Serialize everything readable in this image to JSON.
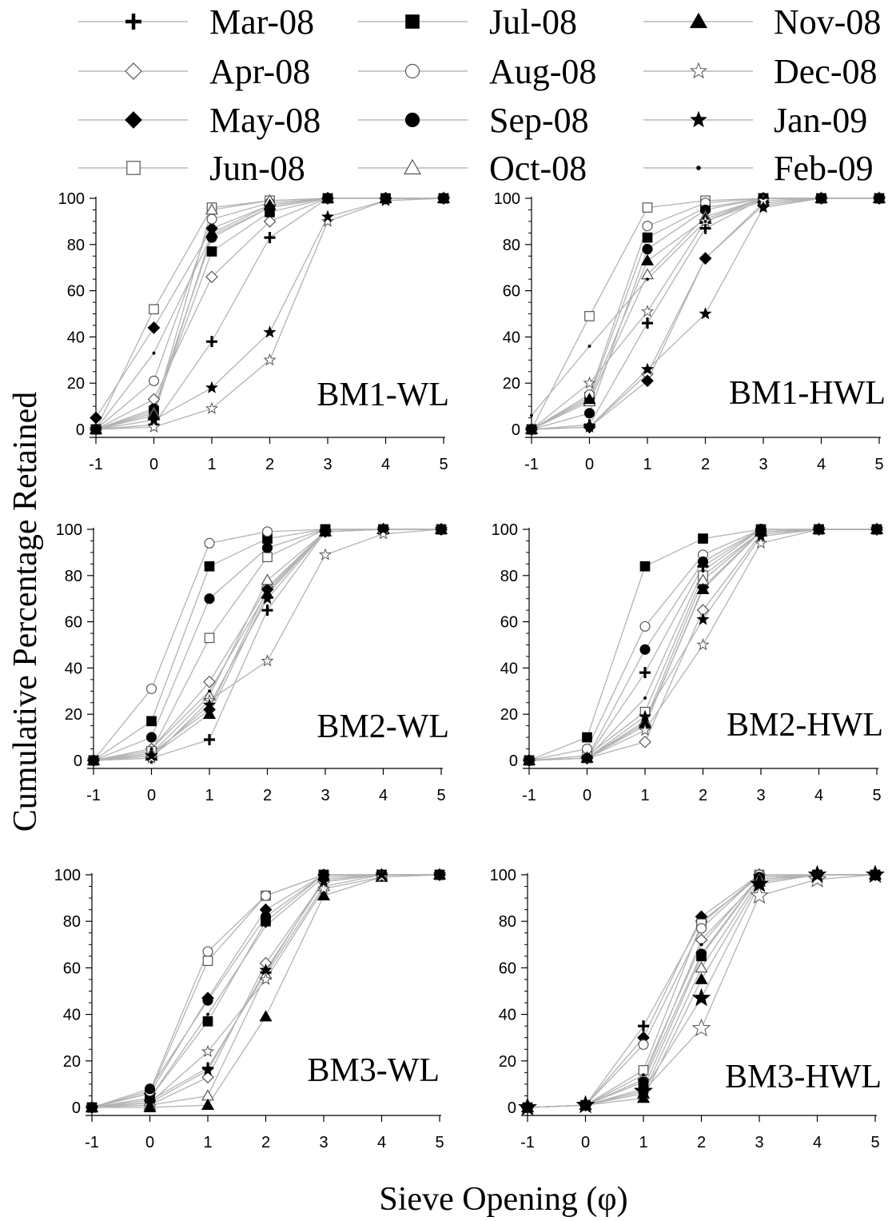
{
  "figure": {
    "ylabel": "Cumulative Percentage Retained",
    "xlabel": "Sieve Opening (φ)"
  },
  "legend": [
    {
      "label": "Mar-08",
      "marker": "plus"
    },
    {
      "label": "Apr-08",
      "marker": "diamond-open"
    },
    {
      "label": "May-08",
      "marker": "diamond-filled"
    },
    {
      "label": "Jun-08",
      "marker": "square-open"
    },
    {
      "label": "Jul-08",
      "marker": "square-filled"
    },
    {
      "label": "Aug-08",
      "marker": "circle-open"
    },
    {
      "label": "Sep-08",
      "marker": "circle-filled"
    },
    {
      "label": "Oct-08",
      "marker": "triangle-open"
    },
    {
      "label": "Nov-08",
      "marker": "triangle-filled"
    },
    {
      "label": "Dec-08",
      "marker": "star-open"
    },
    {
      "label": "Jan-09",
      "marker": "star-filled"
    },
    {
      "label": "Feb-09",
      "marker": "dot"
    }
  ],
  "chart_data": [
    {
      "type": "line",
      "title": "BM1-WL",
      "x": [
        -1,
        0,
        1,
        2,
        3,
        4,
        5
      ],
      "xlim": [
        -1,
        5
      ],
      "ylim": [
        0,
        100
      ],
      "xticks": [
        "-1",
        "0",
        "1",
        "2",
        "3",
        "4",
        "5"
      ],
      "yticks": [
        "0",
        "20",
        "40",
        "60",
        "80",
        "100"
      ],
      "series": [
        {
          "name": "Mar-08",
          "values": [
            0,
            2,
            38,
            83,
            100,
            100,
            100
          ]
        },
        {
          "name": "Apr-08",
          "values": [
            0,
            13,
            66,
            90,
            100,
            100,
            100
          ]
        },
        {
          "name": "May-08",
          "values": [
            5,
            44,
            87,
            97,
            100,
            100,
            100
          ]
        },
        {
          "name": "Jun-08",
          "values": [
            0,
            52,
            96,
            99,
            100,
            100,
            100
          ]
        },
        {
          "name": "Jul-08",
          "values": [
            0,
            8,
            77,
            94,
            100,
            100,
            100
          ]
        },
        {
          "name": "Aug-08",
          "values": [
            0,
            21,
            91,
            98,
            100,
            100,
            100
          ]
        },
        {
          "name": "Sep-08",
          "values": [
            0,
            9,
            83,
            96,
            100,
            100,
            100
          ]
        },
        {
          "name": "Oct-08",
          "values": [
            0,
            7,
            95,
            99,
            100,
            100,
            100
          ]
        },
        {
          "name": "Nov-08",
          "values": [
            0,
            6,
            85,
            97,
            100,
            100,
            100
          ]
        },
        {
          "name": "Dec-08",
          "values": [
            0,
            1,
            9,
            30,
            90,
            99,
            100
          ]
        },
        {
          "name": "Jan-09",
          "values": [
            0,
            4,
            18,
            42,
            92,
            99,
            100
          ]
        },
        {
          "name": "Feb-09",
          "values": [
            0,
            33,
            84,
            96,
            100,
            100,
            100
          ]
        }
      ]
    },
    {
      "type": "line",
      "title": "BM1-HWL",
      "x": [
        -1,
        0,
        1,
        2,
        3,
        4,
        5
      ],
      "xlim": [
        -1,
        5
      ],
      "ylim": [
        0,
        100
      ],
      "xticks": [
        "-1",
        "0",
        "1",
        "2",
        "3",
        "4",
        "5"
      ],
      "yticks": [
        "0",
        "20",
        "40",
        "60",
        "80",
        "100"
      ],
      "series": [
        {
          "name": "Mar-08",
          "values": [
            0,
            2,
            46,
            87,
            100,
            100,
            100
          ]
        },
        {
          "name": "Apr-08",
          "values": [
            0,
            1,
            24,
            74,
            98,
            100,
            100
          ]
        },
        {
          "name": "May-08",
          "values": [
            0,
            1,
            21,
            74,
            97,
            100,
            100
          ]
        },
        {
          "name": "Jun-08",
          "values": [
            0,
            49,
            96,
            99,
            100,
            100,
            100
          ]
        },
        {
          "name": "Jul-08",
          "values": [
            0,
            14,
            83,
            96,
            100,
            100,
            100
          ]
        },
        {
          "name": "Aug-08",
          "values": [
            0,
            15,
            88,
            98,
            100,
            100,
            100
          ]
        },
        {
          "name": "Sep-08",
          "values": [
            0,
            7,
            78,
            95,
            100,
            100,
            100
          ]
        },
        {
          "name": "Oct-08",
          "values": [
            0,
            12,
            67,
            92,
            100,
            100,
            100
          ]
        },
        {
          "name": "Nov-08",
          "values": [
            0,
            13,
            73,
            91,
            100,
            100,
            100
          ]
        },
        {
          "name": "Dec-08",
          "values": [
            0,
            20,
            51,
            90,
            99,
            100,
            100
          ]
        },
        {
          "name": "Jan-09",
          "values": [
            0,
            1,
            26,
            50,
            96,
            100,
            100
          ]
        },
        {
          "name": "Feb-09",
          "values": [
            6,
            36,
            65,
            90,
            100,
            100,
            100
          ]
        }
      ]
    },
    {
      "type": "line",
      "title": "BM2-WL",
      "x": [
        -1,
        0,
        1,
        2,
        3,
        4,
        5
      ],
      "xlim": [
        -1,
        5
      ],
      "ylim": [
        0,
        100
      ],
      "xticks": [
        "-1",
        "0",
        "1",
        "2",
        "3",
        "4",
        "5"
      ],
      "yticks": [
        "0",
        "20",
        "40",
        "60",
        "80",
        "100"
      ],
      "series": [
        {
          "name": "Mar-08",
          "values": [
            0,
            1,
            9,
            65,
            99,
            100,
            100
          ]
        },
        {
          "name": "Apr-08",
          "values": [
            0,
            5,
            34,
            75,
            99,
            100,
            100
          ]
        },
        {
          "name": "May-08",
          "values": [
            0,
            3,
            22,
            74,
            99,
            100,
            100
          ]
        },
        {
          "name": "Jun-08",
          "values": [
            0,
            4,
            53,
            88,
            100,
            100,
            100
          ]
        },
        {
          "name": "Jul-08",
          "values": [
            0,
            17,
            84,
            96,
            100,
            100,
            100
          ]
        },
        {
          "name": "Aug-08",
          "values": [
            0,
            31,
            94,
            99,
            100,
            100,
            100
          ]
        },
        {
          "name": "Sep-08",
          "values": [
            0,
            10,
            70,
            92,
            100,
            100,
            100
          ]
        },
        {
          "name": "Oct-08",
          "values": [
            0,
            3,
            28,
            78,
            99,
            100,
            100
          ]
        },
        {
          "name": "Nov-08",
          "values": [
            0,
            2,
            20,
            72,
            99,
            100,
            100
          ]
        },
        {
          "name": "Dec-08",
          "values": [
            0,
            1,
            26,
            43,
            89,
            98,
            100
          ]
        },
        {
          "name": "Jan-09",
          "values": [
            0,
            2,
            24,
            70,
            99,
            100,
            100
          ]
        },
        {
          "name": "Feb-09",
          "values": [
            0,
            5,
            30,
            73,
            99,
            100,
            100
          ]
        }
      ]
    },
    {
      "type": "line",
      "title": "BM2-HWL",
      "x": [
        -1,
        0,
        1,
        2,
        3,
        4,
        5
      ],
      "xlim": [
        -1,
        5
      ],
      "ylim": [
        0,
        100
      ],
      "xticks": [
        "-1",
        "0",
        "1",
        "2",
        "3",
        "4",
        "5"
      ],
      "yticks": [
        "0",
        "20",
        "40",
        "60",
        "80",
        "100"
      ],
      "series": [
        {
          "name": "Mar-08",
          "values": [
            0,
            1,
            38,
            84,
            100,
            100,
            100
          ]
        },
        {
          "name": "Apr-08",
          "values": [
            0,
            1,
            8,
            65,
            98,
            100,
            100
          ]
        },
        {
          "name": "May-08",
          "values": [
            0,
            1,
            15,
            75,
            99,
            100,
            100
          ]
        },
        {
          "name": "Jun-08",
          "values": [
            0,
            2,
            21,
            80,
            99,
            100,
            100
          ]
        },
        {
          "name": "Jul-08",
          "values": [
            0,
            10,
            84,
            96,
            100,
            100,
            100
          ]
        },
        {
          "name": "Aug-08",
          "values": [
            0,
            5,
            58,
            89,
            100,
            100,
            100
          ]
        },
        {
          "name": "Sep-08",
          "values": [
            0,
            1,
            48,
            86,
            100,
            100,
            100
          ]
        },
        {
          "name": "Oct-08",
          "values": [
            0,
            1,
            17,
            78,
            99,
            100,
            100
          ]
        },
        {
          "name": "Nov-08",
          "values": [
            0,
            1,
            16,
            74,
            99,
            100,
            100
          ]
        },
        {
          "name": "Dec-08",
          "values": [
            0,
            1,
            13,
            50,
            94,
            100,
            100
          ]
        },
        {
          "name": "Jan-09",
          "values": [
            0,
            1,
            19,
            61,
            97,
            100,
            100
          ]
        },
        {
          "name": "Feb-09",
          "values": [
            0,
            1,
            27,
            82,
            100,
            100,
            100
          ]
        }
      ]
    },
    {
      "type": "line",
      "title": "BM3-WL",
      "x": [
        -1,
        0,
        1,
        2,
        3,
        4,
        5
      ],
      "xlim": [
        -1,
        5
      ],
      "ylim": [
        0,
        100
      ],
      "xticks": [
        "-1",
        "0",
        "1",
        "2",
        "3",
        "4",
        "5"
      ],
      "yticks": [
        "0",
        "20",
        "40",
        "60",
        "80",
        "100"
      ],
      "series": [
        {
          "name": "Mar-08",
          "values": [
            0,
            3,
            17,
            58,
            98,
            100,
            100
          ]
        },
        {
          "name": "Apr-08",
          "values": [
            0,
            1,
            13,
            62,
            97,
            100,
            100
          ]
        },
        {
          "name": "May-08",
          "values": [
            0,
            6,
            47,
            85,
            100,
            100,
            100
          ]
        },
        {
          "name": "Jun-08",
          "values": [
            0,
            6,
            63,
            91,
            100,
            100,
            100
          ]
        },
        {
          "name": "Jul-08",
          "values": [
            0,
            4,
            37,
            80,
            100,
            100,
            100
          ]
        },
        {
          "name": "Aug-08",
          "values": [
            0,
            7,
            67,
            91,
            100,
            100,
            100
          ]
        },
        {
          "name": "Sep-08",
          "values": [
            0,
            8,
            46,
            82,
            100,
            100,
            100
          ]
        },
        {
          "name": "Oct-08",
          "values": [
            0,
            1,
            5,
            57,
            95,
            100,
            100
          ]
        },
        {
          "name": "Nov-08",
          "values": [
            0,
            0,
            1,
            39,
            91,
            99,
            100
          ]
        },
        {
          "name": "Dec-08",
          "values": [
            0,
            2,
            24,
            55,
            94,
            99,
            100
          ]
        },
        {
          "name": "Jan-09",
          "values": [
            0,
            2,
            16,
            59,
            97,
            100,
            100
          ]
        },
        {
          "name": "Feb-09",
          "values": [
            0,
            4,
            40,
            78,
            99,
            100,
            100
          ]
        }
      ]
    },
    {
      "type": "line",
      "title": "BM3-HWL",
      "x": [
        -1,
        0,
        1,
        2,
        3,
        4,
        5
      ],
      "xlim": [
        -1,
        5
      ],
      "ylim": [
        0,
        100
      ],
      "xticks": [
        "-1",
        "0",
        "1",
        "2",
        "3",
        "4",
        "5"
      ],
      "yticks": [
        "0",
        "20",
        "40",
        "60",
        "80",
        "100"
      ],
      "series": [
        {
          "name": "Mar-08",
          "values": [
            0,
            1,
            35,
            80,
            99,
            100,
            100
          ]
        },
        {
          "name": "Apr-08",
          "values": [
            0,
            1,
            12,
            72,
            98,
            100,
            100
          ]
        },
        {
          "name": "May-08",
          "values": [
            0,
            1,
            30,
            82,
            100,
            100,
            100
          ]
        },
        {
          "name": "Jun-08",
          "values": [
            0,
            1,
            16,
            79,
            100,
            100,
            100
          ]
        },
        {
          "name": "Jul-08",
          "values": [
            0,
            1,
            8,
            65,
            99,
            100,
            100
          ]
        },
        {
          "name": "Aug-08",
          "values": [
            0,
            1,
            27,
            77,
            100,
            100,
            100
          ]
        },
        {
          "name": "Sep-08",
          "values": [
            0,
            1,
            11,
            66,
            99,
            100,
            100
          ]
        },
        {
          "name": "Oct-08",
          "values": [
            0,
            1,
            6,
            60,
            98,
            100,
            100
          ]
        },
        {
          "name": "Nov-08",
          "values": [
            0,
            1,
            4,
            55,
            97,
            100,
            100
          ]
        },
        {
          "name": "Dec-08",
          "values": [
            0,
            1,
            7,
            34,
            91,
            98,
            100
          ]
        },
        {
          "name": "Jan-09",
          "values": [
            0,
            1,
            7,
            47,
            96,
            100,
            100
          ]
        },
        {
          "name": "Feb-09",
          "values": [
            0,
            1,
            14,
            70,
            99,
            100,
            100
          ]
        }
      ]
    }
  ]
}
